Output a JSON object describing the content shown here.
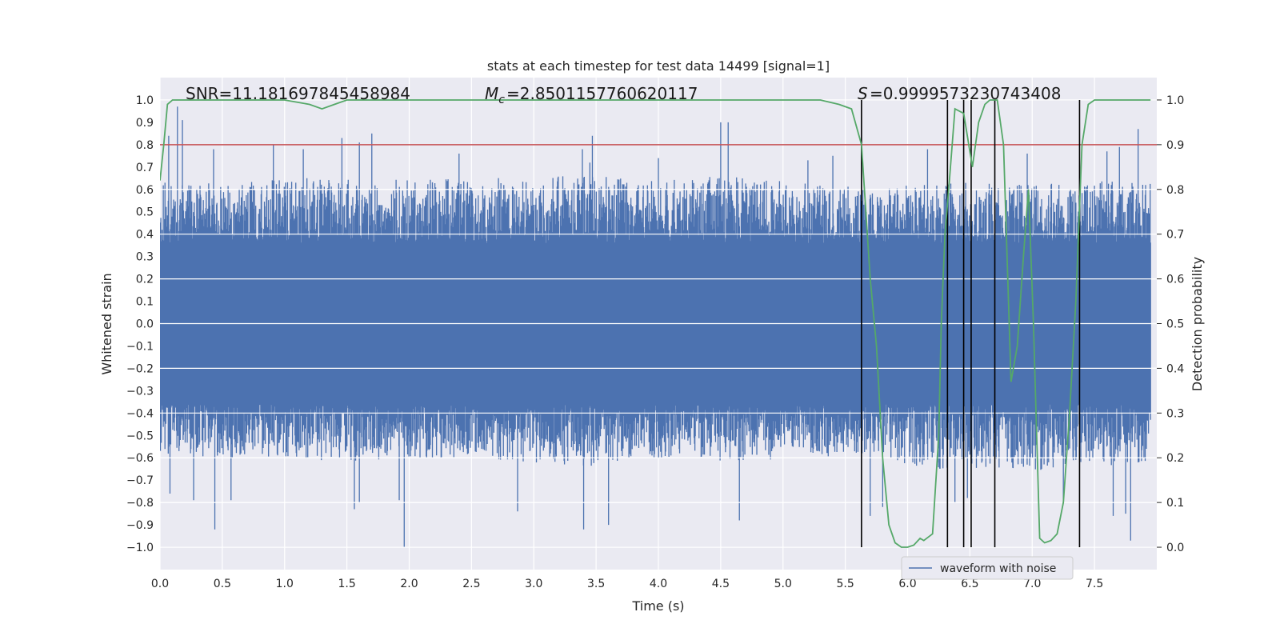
{
  "chart_data": {
    "type": "line",
    "title": "stats at each timestep for test data 14499 [signal=1]",
    "xlabel": "Time (s)",
    "ylabel": "Whitened strain",
    "y2label": "Detection probability",
    "xlim": [
      0.0,
      8.0
    ],
    "ylim": [
      -1.1,
      1.1
    ],
    "y2lim": [
      -0.05,
      1.05
    ],
    "xticks": [
      "0.0",
      "0.5",
      "1.0",
      "1.5",
      "2.0",
      "2.5",
      "3.0",
      "3.5",
      "4.0",
      "4.5",
      "5.0",
      "5.5",
      "6.0",
      "6.5",
      "7.0",
      "7.5"
    ],
    "yticks": [
      "1.0",
      "0.9",
      "0.8",
      "0.7",
      "0.6",
      "0.5",
      "0.4",
      "0.3",
      "0.2",
      "0.1",
      "0.0",
      "−0.1",
      "−0.2",
      "−0.3",
      "−0.4",
      "−0.5",
      "−0.6",
      "−0.7",
      "−0.8",
      "−0.9",
      "−1.0"
    ],
    "y2ticks": [
      "1.0",
      "0.9",
      "0.8",
      "0.7",
      "0.6",
      "0.5",
      "0.4",
      "0.3",
      "0.2",
      "0.1",
      "0.0"
    ],
    "grid": true,
    "legend_position": "lower-right",
    "annotations": {
      "snr": "SNR=11.181697845458984",
      "mc": "=2.8501157760620117",
      "s": "=0.9999573230743408"
    },
    "threshold": {
      "axis": "right",
      "value": 0.9,
      "color": "#c44e52"
    },
    "vlines": [
      5.63,
      6.32,
      6.45,
      6.51,
      6.7,
      7.38
    ],
    "series": [
      {
        "name": "waveform with noise",
        "color": "#4c72b0",
        "axis": "left",
        "envelope": {
          "x": [
            0.0,
            0.5,
            1.0,
            1.5,
            2.0,
            2.5,
            3.0,
            3.5,
            4.0,
            4.5,
            5.0,
            5.5,
            5.7,
            6.0,
            6.5,
            7.0,
            7.5,
            7.95
          ],
          "max": [
            0.62,
            0.63,
            0.65,
            0.66,
            0.64,
            0.65,
            0.66,
            0.66,
            0.64,
            0.66,
            0.64,
            0.62,
            0.6,
            0.62,
            0.63,
            0.62,
            0.64,
            0.63
          ],
          "min": [
            -0.58,
            -0.6,
            -0.6,
            -0.62,
            -0.6,
            -0.61,
            -0.62,
            -0.64,
            -0.61,
            -0.62,
            -0.61,
            -0.6,
            -0.62,
            -0.64,
            -0.66,
            -0.66,
            -0.64,
            -0.62
          ]
        },
        "spikes": [
          {
            "x": 0.04,
            "y": 0.63
          },
          {
            "x": 0.07,
            "y": 0.84
          },
          {
            "x": 0.14,
            "y": 0.97
          },
          {
            "x": 0.18,
            "y": 0.91
          },
          {
            "x": 0.43,
            "y": 0.78
          },
          {
            "x": 0.66,
            "y": 0.62
          },
          {
            "x": 0.91,
            "y": 0.8
          },
          {
            "x": 1.15,
            "y": 0.78
          },
          {
            "x": 1.46,
            "y": 0.83
          },
          {
            "x": 1.6,
            "y": 0.81
          },
          {
            "x": 1.7,
            "y": 0.85
          },
          {
            "x": 2.4,
            "y": 0.76
          },
          {
            "x": 3.39,
            "y": 0.78
          },
          {
            "x": 3.45,
            "y": 0.72
          },
          {
            "x": 3.47,
            "y": 0.84
          },
          {
            "x": 4.0,
            "y": 0.74
          },
          {
            "x": 4.5,
            "y": 0.9
          },
          {
            "x": 4.56,
            "y": 0.9
          },
          {
            "x": 5.2,
            "y": 0.73
          },
          {
            "x": 5.4,
            "y": 0.75
          },
          {
            "x": 6.16,
            "y": 0.78
          },
          {
            "x": 6.96,
            "y": 0.76
          },
          {
            "x": 7.6,
            "y": 0.77
          },
          {
            "x": 7.7,
            "y": 0.79
          },
          {
            "x": 7.85,
            "y": 0.87
          },
          {
            "x": 0.44,
            "y": -0.92
          },
          {
            "x": 0.27,
            "y": -0.79
          },
          {
            "x": 0.57,
            "y": -0.79
          },
          {
            "x": 0.08,
            "y": -0.76
          },
          {
            "x": 1.56,
            "y": -0.83
          },
          {
            "x": 1.6,
            "y": -0.8
          },
          {
            "x": 1.96,
            "y": -1.0
          },
          {
            "x": 1.92,
            "y": -0.79
          },
          {
            "x": 2.87,
            "y": -0.84
          },
          {
            "x": 3.4,
            "y": -0.92
          },
          {
            "x": 3.6,
            "y": -0.9
          },
          {
            "x": 4.65,
            "y": -0.88
          },
          {
            "x": 5.7,
            "y": -0.86
          },
          {
            "x": 5.8,
            "y": -0.82
          },
          {
            "x": 6.38,
            "y": -0.8
          },
          {
            "x": 6.48,
            "y": -0.78
          },
          {
            "x": 7.65,
            "y": -0.86
          },
          {
            "x": 7.75,
            "y": -0.85
          },
          {
            "x": 7.79,
            "y": -0.97
          },
          {
            "x": 7.25,
            "y": -0.8
          }
        ]
      },
      {
        "name": "Detection probability",
        "color": "#55a868",
        "axis": "right",
        "x": [
          0.0,
          0.03,
          0.06,
          0.1,
          0.3,
          0.6,
          1.0,
          1.2,
          1.3,
          1.4,
          1.5,
          2.0,
          3.0,
          4.0,
          5.0,
          5.3,
          5.45,
          5.55,
          5.63,
          5.7,
          5.75,
          5.8,
          5.85,
          5.9,
          5.95,
          6.0,
          6.05,
          6.1,
          6.13,
          6.2,
          6.25,
          6.27,
          6.3,
          6.33,
          6.38,
          6.45,
          6.52,
          6.57,
          6.62,
          6.66,
          6.72,
          6.77,
          6.83,
          6.88,
          6.93,
          6.97,
          7.01,
          7.06,
          7.1,
          7.15,
          7.2,
          7.25,
          7.3,
          7.35,
          7.4,
          7.45,
          7.5,
          7.6,
          7.7,
          7.8,
          7.95
        ],
        "values": [
          0.82,
          0.9,
          0.99,
          1.0,
          1.0,
          1.0,
          1.0,
          0.99,
          0.98,
          0.99,
          1.0,
          1.0,
          1.0,
          1.0,
          1.0,
          1.0,
          0.99,
          0.98,
          0.9,
          0.6,
          0.45,
          0.2,
          0.05,
          0.01,
          0.0,
          0.0,
          0.005,
          0.02,
          0.015,
          0.03,
          0.25,
          0.5,
          0.7,
          0.8,
          0.98,
          0.97,
          0.85,
          0.95,
          0.99,
          1.0,
          1.0,
          0.9,
          0.37,
          0.45,
          0.65,
          0.8,
          0.5,
          0.02,
          0.01,
          0.015,
          0.03,
          0.1,
          0.3,
          0.55,
          0.9,
          0.99,
          1.0,
          1.0,
          1.0,
          1.0,
          1.0
        ]
      }
    ]
  }
}
